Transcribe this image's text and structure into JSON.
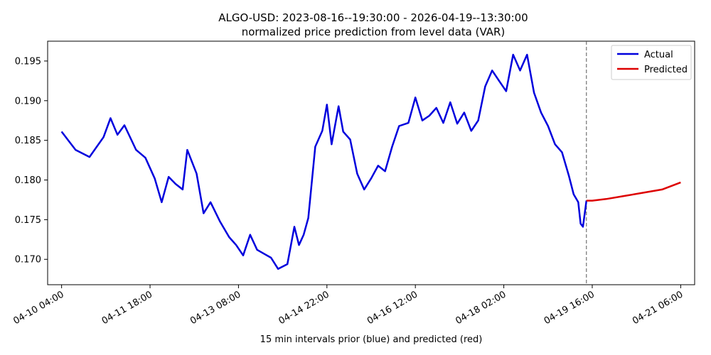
{
  "chart_data": {
    "type": "line",
    "title": "ALGO-USD: 2023-08-16--19:30:00 - 2026-04-19--13:30:00",
    "subtitle": "normalized price prediction from level data (VAR)",
    "xlabel": "15 min intervals prior (blue) and predicted (red)",
    "ylabel": "",
    "x_tick_labels": [
      "04-10 04:00",
      "04-11 18:00",
      "04-13 08:00",
      "04-14 22:00",
      "04-16 12:00",
      "04-18 02:00",
      "04-19 16:00",
      "04-21 06:00"
    ],
    "y_ticks": [
      "0.170",
      "0.175",
      "0.180",
      "0.185",
      "0.190",
      "0.195"
    ],
    "ylim": [
      0.1668,
      0.1975
    ],
    "xlim": [
      "04-09 22:00",
      "04-21 12:00"
    ],
    "prediction_start": "04-19 13:30",
    "grid": false,
    "legend_position": "top-right",
    "series": [
      {
        "name": "Actual",
        "color": "#0000dd",
        "points": [
          [
            "04-10 04:00",
            0.1861
          ],
          [
            "04-10 10:00",
            0.1838
          ],
          [
            "04-10 16:00",
            0.1829
          ],
          [
            "04-10 22:00",
            0.1854
          ],
          [
            "04-11 01:00",
            0.1878
          ],
          [
            "04-11 04:00",
            0.1857
          ],
          [
            "04-11 07:00",
            0.1869
          ],
          [
            "04-11 12:00",
            0.1838
          ],
          [
            "04-11 16:00",
            0.1828
          ],
          [
            "04-11 20:00",
            0.1802
          ],
          [
            "04-11 23:00",
            0.1772
          ],
          [
            "04-12 02:00",
            0.1804
          ],
          [
            "04-12 05:00",
            0.1795
          ],
          [
            "04-12 08:00",
            0.1788
          ],
          [
            "04-12 10:00",
            0.1838
          ],
          [
            "04-12 14:00",
            0.1808
          ],
          [
            "04-12 17:00",
            0.1758
          ],
          [
            "04-12 20:00",
            0.1772
          ],
          [
            "04-13 00:00",
            0.1748
          ],
          [
            "04-13 04:00",
            0.1728
          ],
          [
            "04-13 07:00",
            0.1718
          ],
          [
            "04-13 10:00",
            0.1705
          ],
          [
            "04-13 13:00",
            0.1731
          ],
          [
            "04-13 16:00",
            0.1712
          ],
          [
            "04-13 19:00",
            0.1707
          ],
          [
            "04-13 22:00",
            0.1702
          ],
          [
            "04-14 01:00",
            0.1688
          ],
          [
            "04-14 05:00",
            0.1694
          ],
          [
            "04-14 08:00",
            0.1741
          ],
          [
            "04-14 10:00",
            0.1718
          ],
          [
            "04-14 12:00",
            0.1731
          ],
          [
            "04-14 14:00",
            0.1752
          ],
          [
            "04-14 17:00",
            0.1842
          ],
          [
            "04-14 20:00",
            0.1862
          ],
          [
            "04-14 22:00",
            0.1895
          ],
          [
            "04-15 00:00",
            0.1845
          ],
          [
            "04-15 03:00",
            0.1893
          ],
          [
            "04-15 05:00",
            0.1861
          ],
          [
            "04-15 08:00",
            0.1851
          ],
          [
            "04-15 11:00",
            0.1808
          ],
          [
            "04-15 14:00",
            0.1788
          ],
          [
            "04-15 17:00",
            0.1802
          ],
          [
            "04-15 20:00",
            0.1818
          ],
          [
            "04-15 23:00",
            0.1811
          ],
          [
            "04-16 02:00",
            0.1842
          ],
          [
            "04-16 05:00",
            0.1868
          ],
          [
            "04-16 09:00",
            0.1872
          ],
          [
            "04-16 12:00",
            0.1904
          ],
          [
            "04-16 15:00",
            0.1875
          ],
          [
            "04-16 18:00",
            0.1881
          ],
          [
            "04-16 21:00",
            0.1891
          ],
          [
            "04-17 00:00",
            0.1872
          ],
          [
            "04-17 03:00",
            0.1898
          ],
          [
            "04-17 06:00",
            0.1871
          ],
          [
            "04-17 09:00",
            0.1885
          ],
          [
            "04-17 12:00",
            0.1862
          ],
          [
            "04-17 15:00",
            0.1875
          ],
          [
            "04-17 18:00",
            0.1918
          ],
          [
            "04-17 21:00",
            0.1938
          ],
          [
            "04-18 00:00",
            0.1925
          ],
          [
            "04-18 03:00",
            0.1912
          ],
          [
            "04-18 06:00",
            0.1958
          ],
          [
            "04-18 09:00",
            0.1938
          ],
          [
            "04-18 12:00",
            0.1958
          ],
          [
            "04-18 15:00",
            0.191
          ],
          [
            "04-18 18:00",
            0.1885
          ],
          [
            "04-18 21:00",
            0.1868
          ],
          [
            "04-19 00:00",
            0.1845
          ],
          [
            "04-19 03:00",
            0.1835
          ],
          [
            "04-19 06:00",
            0.1805
          ],
          [
            "04-19 08:00",
            0.1782
          ],
          [
            "04-19 10:00",
            0.1772
          ],
          [
            "04-19 11:00",
            0.1745
          ],
          [
            "04-19 12:00",
            0.1741
          ],
          [
            "04-19 13:30",
            0.1774
          ]
        ]
      },
      {
        "name": "Predicted",
        "color": "#dd0000",
        "points": [
          [
            "04-19 13:30",
            0.1774
          ],
          [
            "04-19 16:00",
            0.1774
          ],
          [
            "04-19 22:00",
            0.1776
          ],
          [
            "04-20 06:00",
            0.178
          ],
          [
            "04-20 14:00",
            0.1784
          ],
          [
            "04-20 22:00",
            0.1788
          ],
          [
            "04-21 06:00",
            0.1797
          ]
        ]
      }
    ]
  }
}
